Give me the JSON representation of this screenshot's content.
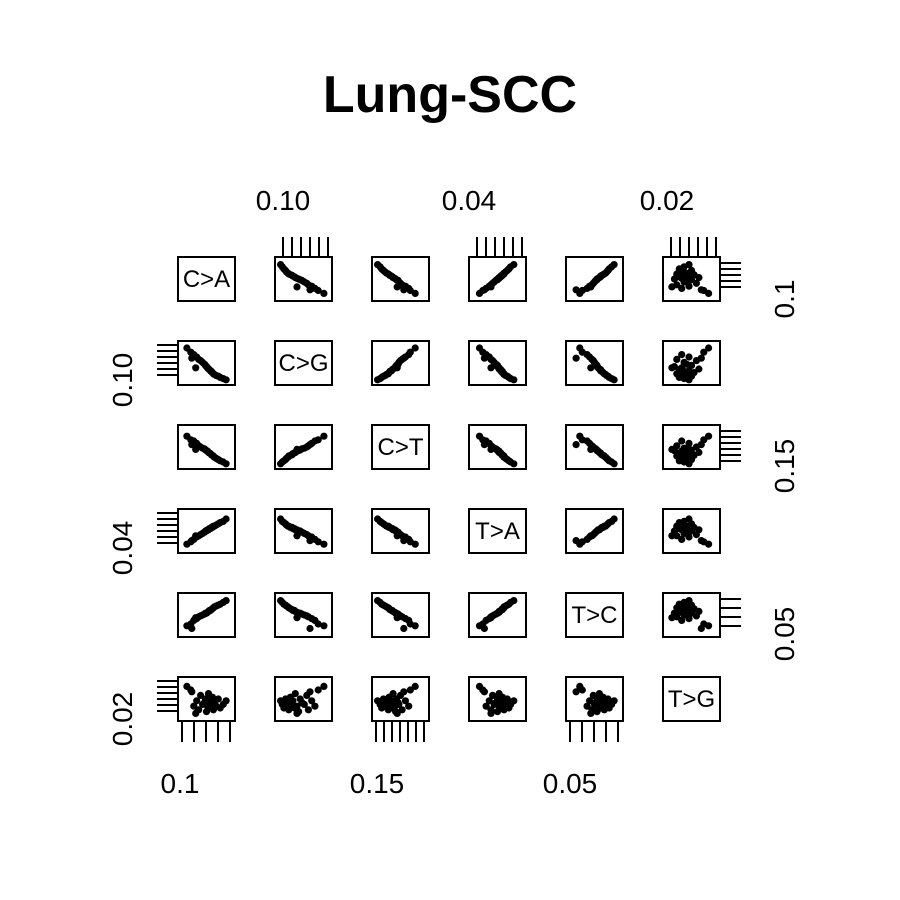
{
  "chart_data": {
    "type": "scatter",
    "subtype": "pairs-matrix",
    "title": "Lung-SCC",
    "variables": [
      "C>A",
      "C>G",
      "C>T",
      "T>A",
      "T>C",
      "T>G"
    ],
    "axis_labels": {
      "top": [
        "0.10",
        "0.04",
        "0.02"
      ],
      "bottom": [
        "0.1",
        "0.15",
        "0.05"
      ],
      "left": [
        "0.10",
        "0.04",
        "0.02"
      ],
      "right": [
        "0.1",
        "0.15",
        "0.05"
      ]
    },
    "ranges": {
      "C>A": [
        0.07,
        0.17
      ],
      "C>G": [
        0.07,
        0.13
      ],
      "C>T": [
        0.12,
        0.18
      ],
      "T>A": [
        0.03,
        0.06
      ],
      "T>C": [
        0.03,
        0.07
      ],
      "T>G": [
        0.015,
        0.035
      ]
    },
    "sample_values": {
      "C>A": [
        0.08,
        0.088,
        0.094,
        0.1,
        0.104,
        0.108,
        0.112,
        0.116,
        0.118,
        0.12,
        0.122,
        0.124,
        0.126,
        0.128,
        0.13,
        0.132,
        0.134,
        0.136,
        0.14,
        0.144,
        0.148,
        0.154,
        0.16,
        0.09,
        0.098
      ],
      "C>G": [
        0.125,
        0.118,
        0.114,
        0.11,
        0.106,
        0.104,
        0.101,
        0.098,
        0.096,
        0.094,
        0.092,
        0.09,
        0.089,
        0.087,
        0.086,
        0.084,
        0.082,
        0.081,
        0.079,
        0.078,
        0.076,
        0.074,
        0.072,
        0.108,
        0.092
      ],
      "C>T": [
        0.168,
        0.162,
        0.16,
        0.156,
        0.152,
        0.15,
        0.148,
        0.147,
        0.145,
        0.144,
        0.143,
        0.141,
        0.14,
        0.139,
        0.137,
        0.136,
        0.135,
        0.133,
        0.131,
        0.129,
        0.127,
        0.125,
        0.122,
        0.154,
        0.146
      ],
      "T>A": [
        0.034,
        0.036,
        0.038,
        0.04,
        0.041,
        0.042,
        0.043,
        0.044,
        0.045,
        0.045,
        0.046,
        0.046,
        0.047,
        0.047,
        0.048,
        0.048,
        0.049,
        0.049,
        0.05,
        0.051,
        0.052,
        0.053,
        0.055,
        0.037,
        0.041
      ],
      "T>C": [
        0.038,
        0.04,
        0.044,
        0.046,
        0.048,
        0.049,
        0.05,
        0.051,
        0.052,
        0.052,
        0.053,
        0.054,
        0.055,
        0.055,
        0.056,
        0.057,
        0.058,
        0.059,
        0.06,
        0.061,
        0.062,
        0.064,
        0.066,
        0.035,
        0.047
      ],
      "T>G": [
        0.032,
        0.03,
        0.021,
        0.024,
        0.019,
        0.027,
        0.022,
        0.023,
        0.025,
        0.018,
        0.021,
        0.028,
        0.02,
        0.024,
        0.022,
        0.026,
        0.019,
        0.023,
        0.021,
        0.025,
        0.02,
        0.022,
        0.024,
        0.029,
        0.017
      ]
    },
    "grid": false,
    "legend": "none"
  }
}
